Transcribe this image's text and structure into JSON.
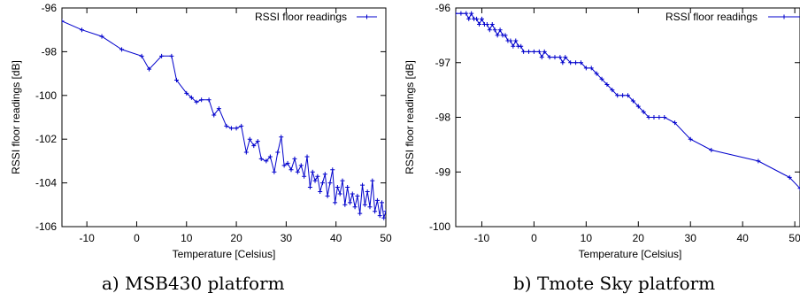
{
  "captions": [
    "a) MSB430 platform",
    "b) Tmote Sky platform"
  ],
  "chart_data": [
    {
      "type": "line",
      "xlabel": "Temperature [Celsius]",
      "ylabel": "RSSI floor readings [dB]",
      "xlim": [
        -15,
        50
      ],
      "ylim": [
        -106,
        -96
      ],
      "xticks": [
        -10,
        0,
        10,
        20,
        30,
        40,
        50
      ],
      "yticks": [
        -106,
        -104,
        -102,
        -100,
        -98,
        -96
      ],
      "grid": false,
      "legend": "top-right",
      "color": "#0000cc",
      "series": [
        {
          "name": "RSSI floor readings",
          "points": [
            [
              -15,
              -96.6
            ],
            [
              -11,
              -97.0
            ],
            [
              -7,
              -97.3
            ],
            [
              -3,
              -97.9
            ],
            [
              1,
              -98.2
            ],
            [
              2.5,
              -98.8
            ],
            [
              5,
              -98.2
            ],
            [
              7,
              -98.2
            ],
            [
              8,
              -99.3
            ],
            [
              10,
              -99.9
            ],
            [
              11,
              -100.1
            ],
            [
              12,
              -100.3
            ],
            [
              13,
              -100.2
            ],
            [
              14.5,
              -100.2
            ],
            [
              15.5,
              -100.9
            ],
            [
              16.5,
              -100.6
            ],
            [
              18,
              -101.4
            ],
            [
              19,
              -101.5
            ],
            [
              20,
              -101.5
            ],
            [
              21,
              -101.4
            ],
            [
              22,
              -102.6
            ],
            [
              22.7,
              -102.0
            ],
            [
              23.5,
              -102.3
            ],
            [
              24.3,
              -102.1
            ],
            [
              25,
              -102.9
            ],
            [
              26,
              -103.0
            ],
            [
              26.8,
              -102.8
            ],
            [
              27.6,
              -103.5
            ],
            [
              28.3,
              -102.6
            ],
            [
              29,
              -101.9
            ],
            [
              29.6,
              -103.2
            ],
            [
              30.3,
              -103.1
            ],
            [
              31,
              -103.4
            ],
            [
              31.7,
              -102.9
            ],
            [
              32.3,
              -103.5
            ],
            [
              33,
              -103.2
            ],
            [
              33.6,
              -103.7
            ],
            [
              34.2,
              -102.8
            ],
            [
              34.8,
              -104.2
            ],
            [
              35.3,
              -103.5
            ],
            [
              35.8,
              -103.9
            ],
            [
              36.3,
              -103.7
            ],
            [
              36.8,
              -104.4
            ],
            [
              37.3,
              -104.0
            ],
            [
              37.8,
              -103.6
            ],
            [
              38.3,
              -104.6
            ],
            [
              38.8,
              -104.0
            ],
            [
              39.3,
              -103.4
            ],
            [
              39.8,
              -104.9
            ],
            [
              40.3,
              -104.2
            ],
            [
              40.8,
              -104.5
            ],
            [
              41.3,
              -103.9
            ],
            [
              41.8,
              -105.0
            ],
            [
              42.3,
              -104.2
            ],
            [
              42.8,
              -104.9
            ],
            [
              43.3,
              -104.5
            ],
            [
              43.8,
              -105.1
            ],
            [
              44.3,
              -104.6
            ],
            [
              44.8,
              -105.4
            ],
            [
              45.3,
              -104.1
            ],
            [
              45.8,
              -105.0
            ],
            [
              46.3,
              -104.4
            ],
            [
              46.8,
              -105.1
            ],
            [
              47.3,
              -103.9
            ],
            [
              47.8,
              -105.3
            ],
            [
              48.3,
              -104.8
            ],
            [
              48.8,
              -105.5
            ],
            [
              49.2,
              -104.9
            ],
            [
              49.6,
              -105.6
            ],
            [
              50,
              -105.3
            ]
          ]
        }
      ]
    },
    {
      "type": "line",
      "xlabel": "Temperature [Celsius]",
      "ylabel": "RSSI floor readings [dB]",
      "xlim": [
        -15,
        51
      ],
      "ylim": [
        -100,
        -96
      ],
      "xticks": [
        -10,
        0,
        10,
        20,
        30,
        40,
        50
      ],
      "yticks": [
        -100,
        -99,
        -98,
        -97,
        -96
      ],
      "grid": false,
      "legend": "top-right",
      "color": "#0000cc",
      "series": [
        {
          "name": "RSSI floor readings",
          "points": [
            [
              -15,
              -96.1
            ],
            [
              -14,
              -96.1
            ],
            [
              -13,
              -96.1
            ],
            [
              -12.5,
              -96.2
            ],
            [
              -12,
              -96.1
            ],
            [
              -11.5,
              -96.2
            ],
            [
              -11,
              -96.2
            ],
            [
              -10.5,
              -96.3
            ],
            [
              -10,
              -96.2
            ],
            [
              -9.5,
              -96.3
            ],
            [
              -9,
              -96.3
            ],
            [
              -8.5,
              -96.4
            ],
            [
              -8,
              -96.3
            ],
            [
              -7.5,
              -96.4
            ],
            [
              -7,
              -96.5
            ],
            [
              -6.5,
              -96.4
            ],
            [
              -6,
              -96.5
            ],
            [
              -5.5,
              -96.5
            ],
            [
              -5,
              -96.6
            ],
            [
              -4.5,
              -96.6
            ],
            [
              -4,
              -96.7
            ],
            [
              -3.5,
              -96.6
            ],
            [
              -3,
              -96.7
            ],
            [
              -2.5,
              -96.7
            ],
            [
              -2,
              -96.8
            ],
            [
              -1,
              -96.8
            ],
            [
              0,
              -96.8
            ],
            [
              1,
              -96.8
            ],
            [
              1.5,
              -96.9
            ],
            [
              2,
              -96.8
            ],
            [
              3,
              -96.9
            ],
            [
              4,
              -96.9
            ],
            [
              5,
              -96.9
            ],
            [
              5.5,
              -97.0
            ],
            [
              6,
              -96.9
            ],
            [
              7,
              -97.0
            ],
            [
              8,
              -97.0
            ],
            [
              9,
              -97.0
            ],
            [
              10,
              -97.1
            ],
            [
              11,
              -97.1
            ],
            [
              12,
              -97.2
            ],
            [
              13,
              -97.3
            ],
            [
              14,
              -97.4
            ],
            [
              15,
              -97.5
            ],
            [
              16,
              -97.6
            ],
            [
              17,
              -97.6
            ],
            [
              18,
              -97.6
            ],
            [
              19,
              -97.7
            ],
            [
              20,
              -97.8
            ],
            [
              21,
              -97.9
            ],
            [
              22,
              -98.0
            ],
            [
              23,
              -98.0
            ],
            [
              24,
              -98.0
            ],
            [
              25,
              -98.0
            ],
            [
              27,
              -98.1
            ],
            [
              30,
              -98.4
            ],
            [
              34,
              -98.6
            ],
            [
              43,
              -98.8
            ],
            [
              49,
              -99.1
            ],
            [
              51,
              -99.3
            ]
          ]
        }
      ]
    }
  ]
}
